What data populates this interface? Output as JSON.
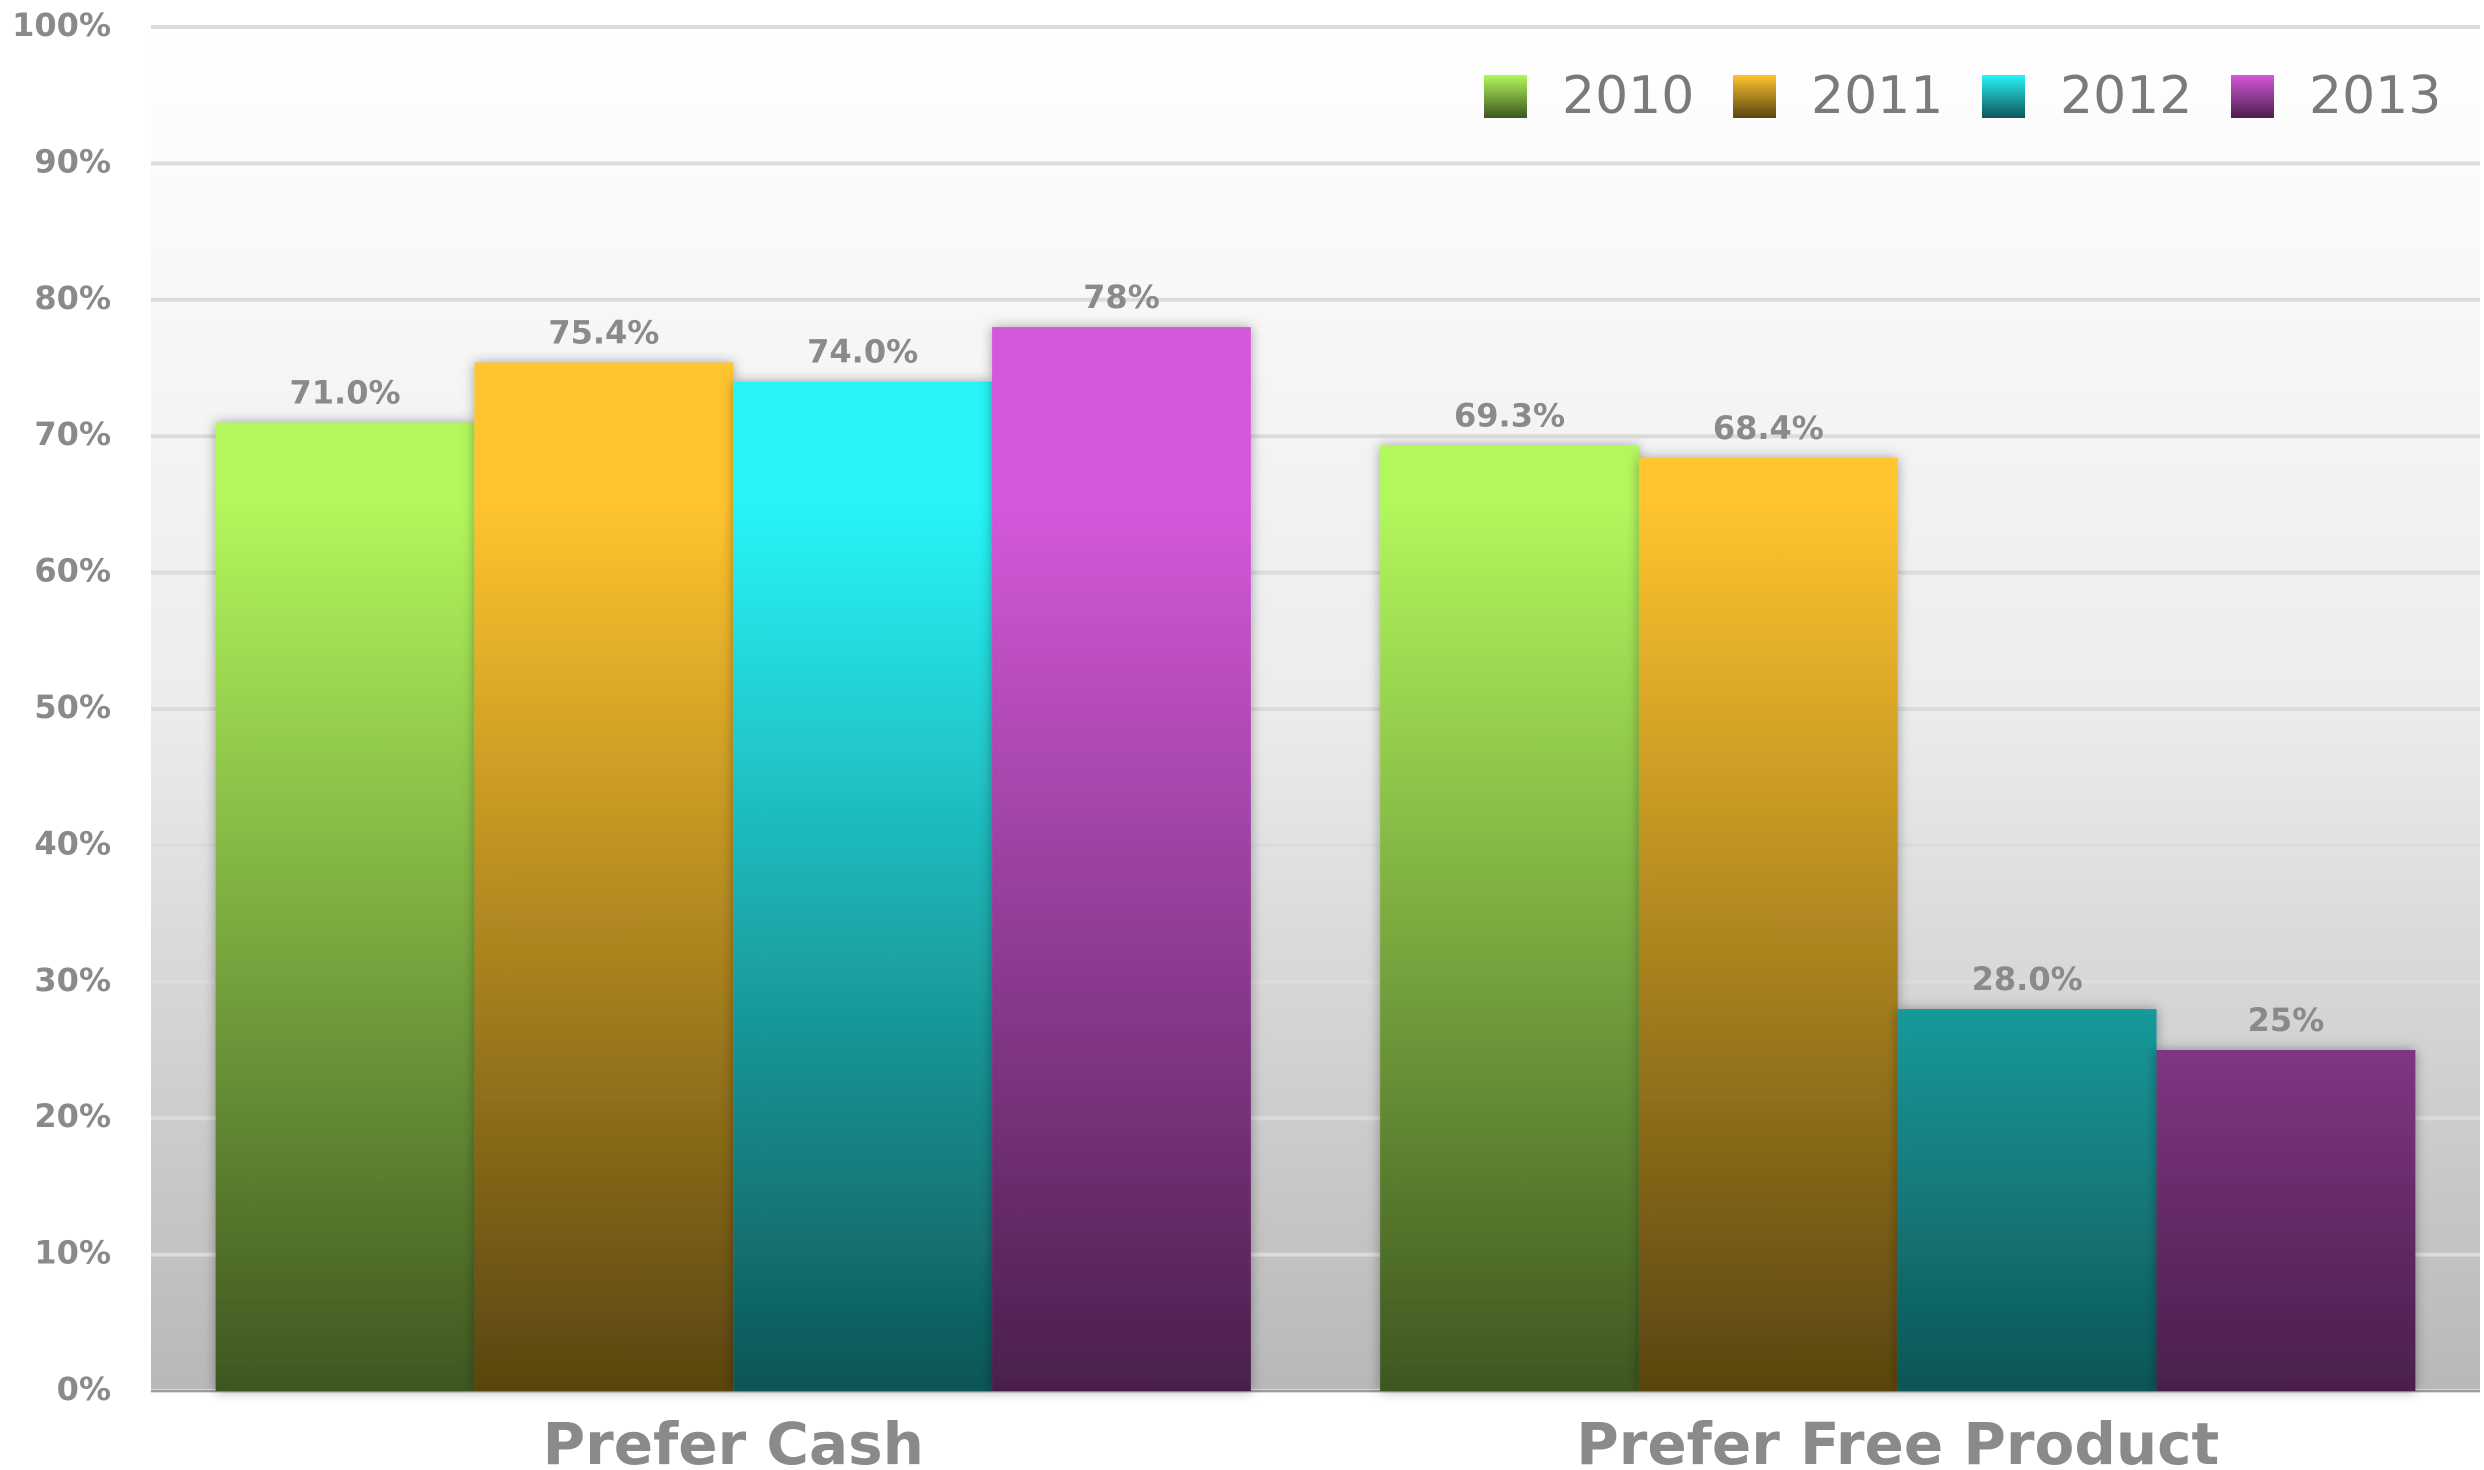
{
  "chart_data": {
    "type": "bar",
    "categories": [
      "Prefer Cash",
      "Prefer Free Product"
    ],
    "series": [
      {
        "name": "2010",
        "color": "#b2f75c",
        "values": [
          71.0,
          69.3
        ],
        "value_labels": [
          "71.0%",
          "69.3%"
        ]
      },
      {
        "name": "2011",
        "color": "#ffc42e",
        "values": [
          75.4,
          68.4
        ],
        "value_labels": [
          "75.4%",
          "68.4%"
        ]
      },
      {
        "name": "2012",
        "color": "#28f4f7",
        "values": [
          74.0,
          28.0
        ],
        "value_labels": [
          "74.0%",
          "28.0%"
        ]
      },
      {
        "name": "2013",
        "color": "#d458da",
        "values": [
          78,
          25
        ],
        "value_labels": [
          "78%",
          "25%"
        ]
      }
    ],
    "ylim": [
      0,
      100
    ],
    "yticks": [
      {
        "value": 0,
        "label": "0%"
      },
      {
        "value": 10,
        "label": "10%"
      },
      {
        "value": 20,
        "label": "20%"
      },
      {
        "value": 30,
        "label": "30%"
      },
      {
        "value": 40,
        "label": "40%"
      },
      {
        "value": 50,
        "label": "50%"
      },
      {
        "value": 60,
        "label": "60%"
      },
      {
        "value": 70,
        "label": "70%"
      },
      {
        "value": 80,
        "label": "80%"
      },
      {
        "value": 90,
        "label": "90%"
      },
      {
        "value": 100,
        "label": "100%"
      }
    ],
    "grid": true,
    "legend": "top-right"
  }
}
